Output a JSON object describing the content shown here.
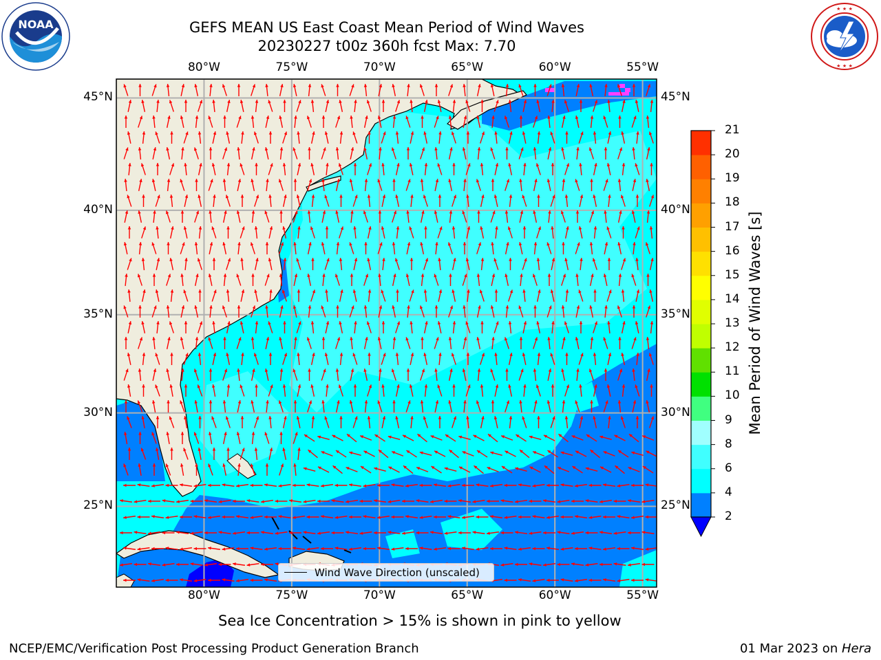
{
  "title": {
    "line1": "GEFS MEAN US East Coast Mean Period of Wind Waves",
    "line2": "20230227 t00z 360h fcst   Max: 7.70"
  },
  "logos": {
    "left": {
      "name": "noaa-logo",
      "text": "NOAA",
      "ring_text": "NATIONAL OCEANIC AND ATMOSPHERIC ADMINISTRATION · U.S. DEPARTMENT OF COMMERCE"
    },
    "right": {
      "name": "nws-logo",
      "ring_text": "NATIONAL WEATHER SERVICE"
    }
  },
  "map": {
    "lon_range": [
      -85,
      -54.2
    ],
    "lat_range": [
      20.5,
      45.8
    ],
    "lon_ticks": [
      {
        "value": -80,
        "label": "80°W"
      },
      {
        "value": -75,
        "label": "75°W"
      },
      {
        "value": -70,
        "label": "70°W"
      },
      {
        "value": -65,
        "label": "65°W"
      },
      {
        "value": -60,
        "label": "60°W"
      },
      {
        "value": -55,
        "label": "55°W"
      }
    ],
    "lat_ticks": [
      {
        "value": 45,
        "label": "45°N"
      },
      {
        "value": 40,
        "label": "40°N"
      },
      {
        "value": 35,
        "label": "35°N"
      },
      {
        "value": 30,
        "label": "30°N"
      },
      {
        "value": 25,
        "label": "25°N"
      }
    ],
    "colors": {
      "land": "#efedde",
      "ocean_4_6": "#00ffff",
      "ocean_6_8": "#40ffff",
      "ocean_2_4": "#0080ff",
      "ocean_lt_2": "#0000ff",
      "arrow": "#ff0000",
      "grid": "#b0b0b0",
      "sea_ice": "#ff40ff"
    },
    "legend_label": "Wind Wave Direction (unscaled)"
  },
  "colorbar": {
    "label": "Mean Period of Wind Waves [s]",
    "ticks": [
      "21",
      "20",
      "19",
      "18",
      "17",
      "16",
      "15",
      "14",
      "13",
      "12",
      "11",
      "10",
      "9",
      "8",
      "6",
      "4",
      "2"
    ],
    "colors": [
      "#0080ff",
      "#00ffff",
      "#40ffff",
      "#a0ffff",
      "#40ff80",
      "#00e000",
      "#60e000",
      "#c0ff00",
      "#e0ff00",
      "#ffff00",
      "#ffe000",
      "#ffc000",
      "#ffa000",
      "#ff8000",
      "#ff6000",
      "#ff3000",
      "#ff0000"
    ],
    "underflow_color": "#0000ff"
  },
  "caption": "Sea Ice Concentration > 15% is shown in pink to yellow",
  "footer": {
    "left": "NCEP/EMC/Verification Post Processing Product Generation Branch",
    "right_date": "01 Mar 2023 on ",
    "right_machine": "Hera"
  }
}
